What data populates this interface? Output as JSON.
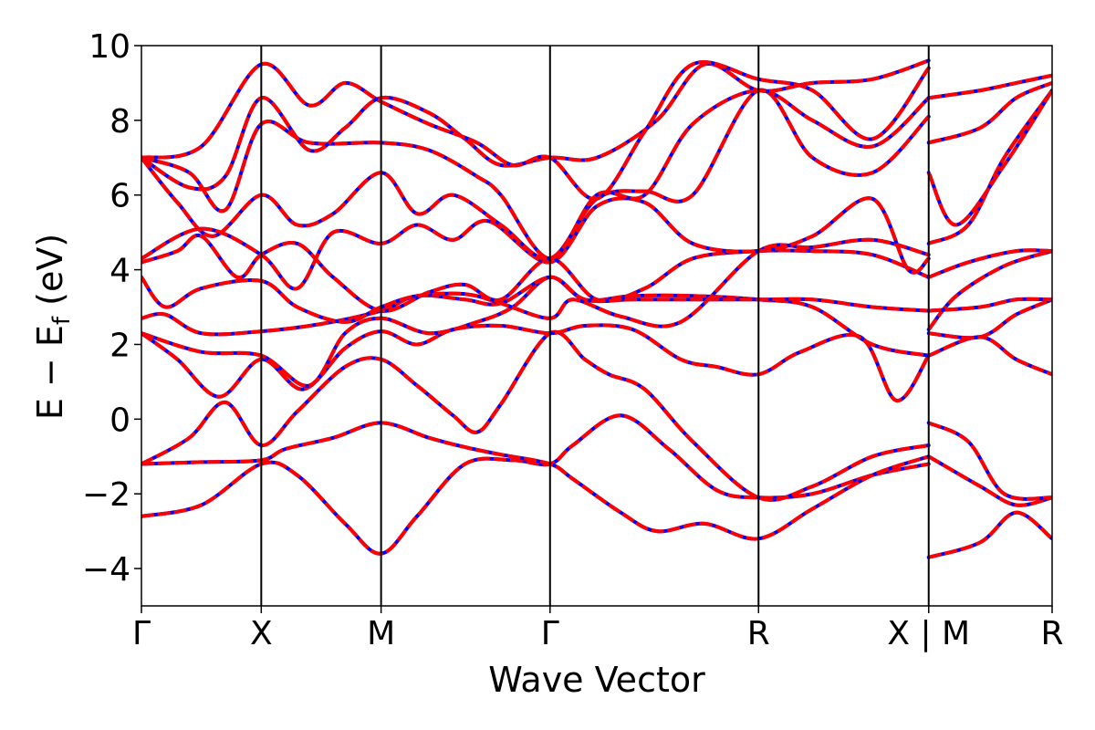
{
  "chart_data": {
    "type": "line",
    "title": "",
    "xlabel": "Wave Vector",
    "ylabel": {
      "main": "E − E",
      "sub": "f",
      "unit": "(eV)"
    },
    "ylim": [
      -5,
      10
    ],
    "xlim": [
      0,
      7.6
    ],
    "yticks": [
      {
        "value": -4,
        "label": "−4"
      },
      {
        "value": -2,
        "label": "−2"
      },
      {
        "value": 0,
        "label": "0"
      },
      {
        "value": 2,
        "label": "2"
      },
      {
        "value": 4,
        "label": "4"
      },
      {
        "value": 6,
        "label": "6"
      },
      {
        "value": 8,
        "label": "8"
      },
      {
        "value": 10,
        "label": "10"
      }
    ],
    "kpoints": [
      {
        "x": 0.0,
        "label": "Γ"
      },
      {
        "x": 1.0,
        "label": "X"
      },
      {
        "x": 2.0,
        "label": "M"
      },
      {
        "x": 3.41,
        "label": "Γ"
      },
      {
        "x": 5.15,
        "label": "R"
      },
      {
        "x": 6.57,
        "label": "X | M"
      },
      {
        "x": 7.6,
        "label": "R"
      }
    ],
    "series_style": {
      "reference": {
        "color": "#0000ff",
        "style": "solid"
      },
      "overlay": {
        "color": "#ff0000",
        "style": "dashed"
      }
    },
    "bands": [
      [
        [
          0,
          -2.6
        ],
        [
          0.5,
          -2.3
        ],
        [
          1.0,
          -1.2
        ],
        [
          1.3,
          -1.5
        ],
        [
          1.7,
          -2.8
        ],
        [
          2.0,
          -3.6
        ],
        [
          2.3,
          -2.6
        ],
        [
          2.7,
          -1.2
        ],
        [
          3.1,
          -1.1
        ],
        [
          3.41,
          -1.2
        ],
        [
          3.6,
          -0.7
        ],
        [
          4.0,
          0.1
        ],
        [
          4.4,
          -0.8
        ],
        [
          4.8,
          -1.9
        ],
        [
          5.15,
          -2.1
        ],
        [
          5.6,
          -2.0
        ],
        [
          6.1,
          -1.5
        ],
        [
          6.57,
          -1.2
        ]
      ],
      [
        [
          0,
          -1.2
        ],
        [
          0.5,
          -1.15
        ],
        [
          1.0,
          -1.1
        ],
        [
          1.2,
          -0.8
        ],
        [
          1.6,
          -0.5
        ],
        [
          2.0,
          -0.1
        ],
        [
          2.4,
          -0.5
        ],
        [
          2.7,
          -0.75
        ],
        [
          3.0,
          -0.95
        ],
        [
          3.41,
          -1.2
        ],
        [
          3.6,
          -1.6
        ],
        [
          4.0,
          -2.5
        ],
        [
          4.3,
          -3.0
        ],
        [
          4.7,
          -2.8
        ],
        [
          5.15,
          -3.2
        ],
        [
          5.6,
          -2.4
        ],
        [
          6.1,
          -1.5
        ],
        [
          6.57,
          -1.0
        ]
      ],
      [
        [
          0,
          -1.2
        ],
        [
          0.4,
          -0.5
        ],
        [
          0.7,
          0.45
        ],
        [
          1.0,
          -0.7
        ],
        [
          1.3,
          0.2
        ],
        [
          1.7,
          1.4
        ],
        [
          2.0,
          1.6
        ],
        [
          2.3,
          0.9
        ],
        [
          2.6,
          0.1
        ],
        [
          2.8,
          -0.35
        ],
        [
          3.0,
          0.4
        ],
        [
          3.41,
          2.3
        ],
        [
          3.7,
          1.6
        ],
        [
          3.9,
          1.2
        ],
        [
          4.2,
          0.8
        ],
        [
          4.6,
          -0.6
        ],
        [
          5.15,
          -2.1
        ],
        [
          5.6,
          -1.8
        ],
        [
          6.1,
          -1.0
        ],
        [
          6.57,
          -0.7
        ]
      ],
      [
        [
          0,
          2.3
        ],
        [
          0.3,
          1.6
        ],
        [
          0.65,
          0.6
        ],
        [
          1.0,
          1.6
        ],
        [
          1.35,
          0.8
        ],
        [
          1.7,
          1.9
        ],
        [
          2.0,
          2.35
        ],
        [
          2.3,
          2.0
        ],
        [
          2.6,
          2.4
        ],
        [
          3.0,
          2.5
        ],
        [
          3.41,
          2.3
        ],
        [
          3.7,
          2.5
        ],
        [
          4.1,
          2.4
        ],
        [
          4.5,
          1.6
        ],
        [
          4.8,
          1.4
        ],
        [
          5.15,
          1.2
        ],
        [
          5.5,
          1.8
        ],
        [
          6.0,
          2.2
        ],
        [
          6.3,
          0.5
        ],
        [
          6.57,
          1.7
        ]
      ],
      [
        [
          0,
          2.3
        ],
        [
          0.5,
          1.8
        ],
        [
          1.0,
          1.7
        ],
        [
          1.4,
          0.9
        ],
        [
          1.7,
          2.3
        ],
        [
          2.0,
          2.7
        ],
        [
          2.4,
          2.3
        ],
        [
          2.8,
          2.6
        ],
        [
          3.1,
          3.0
        ],
        [
          3.41,
          3.8
        ],
        [
          3.7,
          3.2
        ],
        [
          4.1,
          3.3
        ],
        [
          4.6,
          3.3
        ],
        [
          5.15,
          3.2
        ],
        [
          5.6,
          3.0
        ],
        [
          6.1,
          2.0
        ],
        [
          6.57,
          1.7
        ]
      ],
      [
        [
          0,
          2.7
        ],
        [
          0.2,
          2.8
        ],
        [
          0.5,
          2.3
        ],
        [
          1.0,
          2.35
        ],
        [
          1.5,
          2.55
        ],
        [
          2.0,
          2.9
        ],
        [
          2.3,
          3.3
        ],
        [
          2.7,
          3.2
        ],
        [
          3.0,
          3.1
        ],
        [
          3.41,
          3.8
        ],
        [
          3.7,
          3.2
        ],
        [
          4.1,
          3.2
        ],
        [
          4.6,
          3.2
        ],
        [
          5.15,
          3.2
        ],
        [
          5.6,
          3.2
        ],
        [
          6.1,
          3.0
        ],
        [
          6.57,
          2.9
        ]
      ],
      [
        [
          0,
          3.8
        ],
        [
          0.2,
          3.0
        ],
        [
          0.5,
          3.5
        ],
        [
          1.0,
          3.7
        ],
        [
          1.3,
          3.0
        ],
        [
          1.7,
          2.6
        ],
        [
          2.0,
          3.0
        ],
        [
          2.3,
          3.3
        ],
        [
          2.7,
          3.35
        ],
        [
          3.0,
          3.1
        ],
        [
          3.41,
          2.7
        ],
        [
          3.6,
          3.2
        ],
        [
          4.0,
          2.75
        ],
        [
          4.5,
          2.6
        ],
        [
          5.15,
          4.5
        ],
        [
          5.6,
          4.6
        ],
        [
          6.1,
          4.8
        ],
        [
          6.57,
          4.4
        ]
      ],
      [
        [
          0,
          4.2
        ],
        [
          0.3,
          4.5
        ],
        [
          0.5,
          4.9
        ],
        [
          0.8,
          3.8
        ],
        [
          1.0,
          4.4
        ],
        [
          1.3,
          4.7
        ],
        [
          1.6,
          3.8
        ],
        [
          2.0,
          2.9
        ],
        [
          2.4,
          3.4
        ],
        [
          2.7,
          3.6
        ],
        [
          3.0,
          3.2
        ],
        [
          3.41,
          4.3
        ],
        [
          3.8,
          3.2
        ],
        [
          4.2,
          3.5
        ],
        [
          4.6,
          4.3
        ],
        [
          5.15,
          4.5
        ],
        [
          5.6,
          4.5
        ],
        [
          6.1,
          4.4
        ],
        [
          6.57,
          3.8
        ]
      ],
      [
        [
          0,
          4.3
        ],
        [
          0.5,
          5.1
        ],
        [
          1.0,
          4.4
        ],
        [
          1.3,
          3.5
        ],
        [
          1.6,
          5.0
        ],
        [
          2.0,
          4.7
        ],
        [
          2.3,
          5.2
        ],
        [
          2.6,
          4.8
        ],
        [
          2.9,
          5.3
        ],
        [
          3.41,
          4.2
        ],
        [
          3.8,
          5.7
        ],
        [
          4.2,
          5.8
        ],
        [
          4.6,
          4.7
        ],
        [
          5.15,
          4.5
        ],
        [
          5.6,
          4.9
        ],
        [
          6.1,
          5.9
        ],
        [
          6.4,
          4.0
        ],
        [
          6.57,
          4.3
        ]
      ],
      [
        [
          0,
          7.0
        ],
        [
          0.3,
          5.8
        ],
        [
          0.6,
          4.9
        ],
        [
          1.0,
          6.0
        ],
        [
          1.3,
          5.2
        ],
        [
          1.6,
          5.5
        ],
        [
          2.0,
          6.6
        ],
        [
          2.3,
          5.5
        ],
        [
          2.6,
          6.0
        ],
        [
          3.0,
          5.2
        ],
        [
          3.41,
          4.3
        ],
        [
          3.8,
          5.9
        ],
        [
          4.2,
          6.1
        ],
        [
          4.6,
          6.0
        ],
        [
          5.15,
          8.8
        ],
        [
          5.6,
          7.0
        ],
        [
          6.1,
          6.6
        ],
        [
          6.57,
          8.1
        ]
      ],
      [
        [
          0,
          7.0
        ],
        [
          0.4,
          6.6
        ],
        [
          0.7,
          5.6
        ],
        [
          1.0,
          7.9
        ],
        [
          1.4,
          7.4
        ],
        [
          2.0,
          7.4
        ],
        [
          2.4,
          7.2
        ],
        [
          2.8,
          6.5
        ],
        [
          3.0,
          6.0
        ],
        [
          3.41,
          4.3
        ],
        [
          3.8,
          6.0
        ],
        [
          4.2,
          6.0
        ],
        [
          4.6,
          7.9
        ],
        [
          5.15,
          8.8
        ],
        [
          5.6,
          8.0
        ],
        [
          6.1,
          7.3
        ],
        [
          6.57,
          8.6
        ]
      ],
      [
        [
          0,
          7.0
        ],
        [
          0.4,
          6.2
        ],
        [
          0.7,
          6.5
        ],
        [
          1.0,
          8.6
        ],
        [
          1.4,
          7.2
        ],
        [
          1.7,
          7.8
        ],
        [
          2.0,
          8.6
        ],
        [
          2.4,
          8.2
        ],
        [
          2.7,
          7.5
        ],
        [
          3.0,
          6.8
        ],
        [
          3.41,
          7.0
        ],
        [
          3.8,
          7.0
        ],
        [
          4.3,
          8.0
        ],
        [
          4.7,
          9.5
        ],
        [
          5.15,
          8.8
        ],
        [
          5.6,
          9.0
        ],
        [
          6.1,
          9.1
        ],
        [
          6.57,
          9.6
        ]
      ],
      [
        [
          0,
          7.0
        ],
        [
          0.5,
          7.3
        ],
        [
          1.0,
          9.5
        ],
        [
          1.4,
          8.4
        ],
        [
          1.7,
          9.0
        ],
        [
          2.0,
          8.5
        ],
        [
          2.4,
          7.9
        ],
        [
          2.8,
          7.4
        ],
        [
          3.1,
          6.8
        ],
        [
          3.41,
          7.0
        ],
        [
          3.8,
          5.9
        ],
        [
          4.2,
          7.7
        ],
        [
          4.6,
          9.5
        ],
        [
          5.15,
          9.1
        ],
        [
          5.6,
          8.8
        ],
        [
          6.1,
          7.5
        ],
        [
          6.57,
          9.4
        ]
      ]
    ],
    "bands_right": [
      [
        [
          6.57,
          -1.0
        ],
        [
          7.0,
          -1.8
        ],
        [
          7.3,
          -2.3
        ],
        [
          7.6,
          -2.1
        ]
      ],
      [
        [
          6.57,
          -0.1
        ],
        [
          6.9,
          -0.6
        ],
        [
          7.2,
          -2.0
        ],
        [
          7.6,
          -2.1
        ]
      ],
      [
        [
          6.57,
          -3.7
        ],
        [
          7.0,
          -3.3
        ],
        [
          7.3,
          -2.5
        ],
        [
          7.6,
          -3.2
        ]
      ],
      [
        [
          6.57,
          1.7
        ],
        [
          7.0,
          2.2
        ],
        [
          7.3,
          1.6
        ],
        [
          7.6,
          1.2
        ]
      ],
      [
        [
          6.57,
          2.3
        ],
        [
          7.0,
          2.2
        ],
        [
          7.3,
          2.8
        ],
        [
          7.6,
          3.2
        ]
      ],
      [
        [
          6.57,
          2.4
        ],
        [
          6.8,
          3.3
        ],
        [
          7.2,
          4.1
        ],
        [
          7.6,
          4.5
        ]
      ],
      [
        [
          6.57,
          2.9
        ],
        [
          7.0,
          3.0
        ],
        [
          7.3,
          3.2
        ],
        [
          7.6,
          3.2
        ]
      ],
      [
        [
          6.57,
          3.8
        ],
        [
          6.9,
          4.2
        ],
        [
          7.3,
          4.5
        ],
        [
          7.6,
          4.5
        ]
      ],
      [
        [
          6.57,
          4.7
        ],
        [
          6.9,
          5.2
        ],
        [
          7.2,
          7.0
        ],
        [
          7.6,
          8.8
        ]
      ],
      [
        [
          6.57,
          6.6
        ],
        [
          6.8,
          5.2
        ],
        [
          7.2,
          6.8
        ],
        [
          7.6,
          8.8
        ]
      ],
      [
        [
          6.57,
          7.4
        ],
        [
          7.0,
          7.8
        ],
        [
          7.3,
          8.6
        ],
        [
          7.6,
          9.0
        ]
      ],
      [
        [
          6.57,
          8.6
        ],
        [
          7.0,
          8.8
        ],
        [
          7.3,
          9.0
        ],
        [
          7.6,
          9.2
        ]
      ]
    ]
  }
}
